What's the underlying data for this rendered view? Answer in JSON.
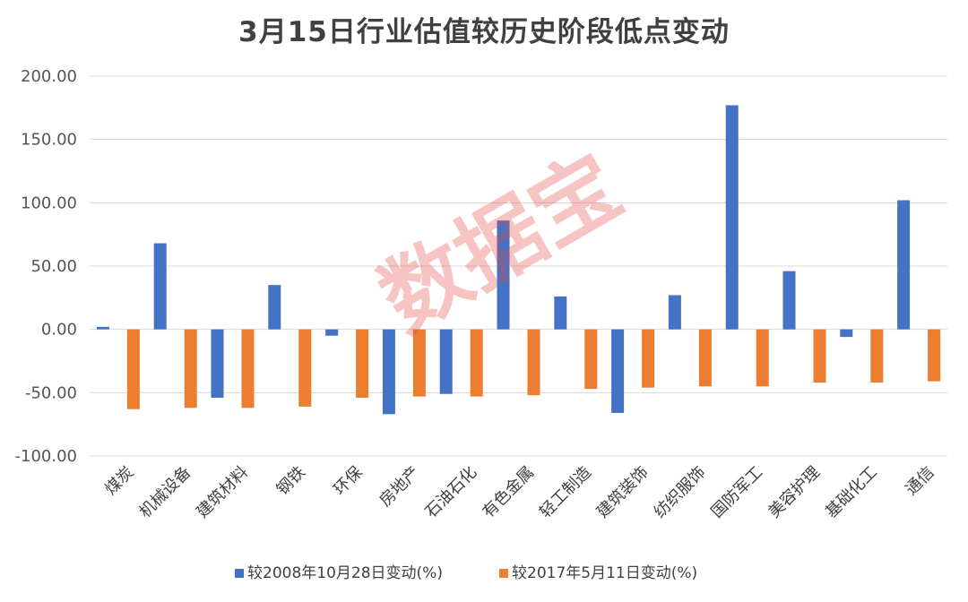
{
  "chart_data": {
    "type": "bar",
    "title": "3月15日行业估值较历史阶段低点变动",
    "xlabel": "",
    "ylabel": "",
    "ylim": [
      -100,
      200
    ],
    "yticks": [
      "200.00",
      "150.00",
      "100.00",
      "50.00",
      "0.00",
      "-50.00",
      "-100.00"
    ],
    "grid": true,
    "legend": "bottom",
    "categories": [
      "煤炭",
      "机械设备",
      "建筑材料",
      "钢铁",
      "环保",
      "房地产",
      "石油石化",
      "有色金属",
      "轻工制造",
      "建筑装饰",
      "纺织服饰",
      "国防军工",
      "美容护理",
      "基础化工",
      "通信"
    ],
    "series": [
      {
        "name": "较2008年10月28日变动(%)",
        "color": "#4472c4",
        "values": [
          2,
          68,
          -54,
          35,
          -5,
          -67,
          -51,
          86,
          26,
          -66,
          27,
          177,
          46,
          -6,
          102
        ]
      },
      {
        "name": "较2017年5月11日变动(%)",
        "color": "#ed7d31",
        "values": [
          -63,
          -62,
          -62,
          -61,
          -54,
          -53,
          -53,
          -52,
          -47,
          -46,
          -45,
          -45,
          -42,
          -42,
          -41
        ]
      }
    ]
  },
  "watermark": {
    "text": "数据宝",
    "color": "#e64646"
  }
}
